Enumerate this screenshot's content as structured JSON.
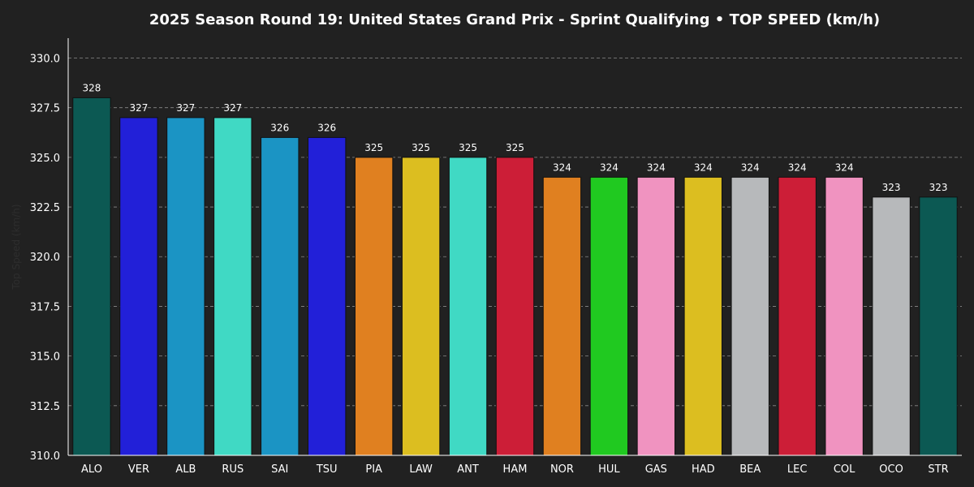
{
  "chart_data": {
    "type": "bar",
    "title": "2025 Season Round 19: United States Grand Prix - Sprint Qualifying  •  TOP SPEED (km/h)",
    "xlabel": "",
    "ylabel": "Top Speed (km/h)",
    "ylim": [
      310.0,
      331.0
    ],
    "yticks": [
      "310.0",
      "312.5",
      "315.0",
      "317.5",
      "320.0",
      "322.5",
      "325.0",
      "327.5",
      "330.0"
    ],
    "grid": "horizontal-dashed",
    "categories": [
      "ALO",
      "VER",
      "ALB",
      "RUS",
      "SAI",
      "TSU",
      "PIA",
      "LAW",
      "ANT",
      "HAM",
      "NOR",
      "HUL",
      "GAS",
      "HAD",
      "BEA",
      "LEC",
      "COL",
      "OCO",
      "STR"
    ],
    "values": [
      328,
      327,
      327,
      327,
      326,
      326,
      325,
      325,
      325,
      325,
      324,
      324,
      324,
      324,
      324,
      324,
      324,
      323,
      323
    ],
    "value_labels": [
      "328",
      "327",
      "327",
      "327",
      "326",
      "326",
      "325",
      "325",
      "325",
      "325",
      "324",
      "324",
      "324",
      "324",
      "324",
      "324",
      "324",
      "323",
      "323"
    ],
    "colors": [
      "#0c5953",
      "#2220d8",
      "#1b94c4",
      "#40d9c4",
      "#1b94c4",
      "#2220d8",
      "#e08020",
      "#dcbe20",
      "#40d9c4",
      "#cc1e37",
      "#e08020",
      "#20c920",
      "#f093c0",
      "#dcbe20",
      "#b7b9bb",
      "#cc1e37",
      "#f093c0",
      "#b7b9bb",
      "#0c5953"
    ]
  },
  "theme": {
    "background": "#212121",
    "text": "#ffffff",
    "grid": "#8a8a8a"
  }
}
